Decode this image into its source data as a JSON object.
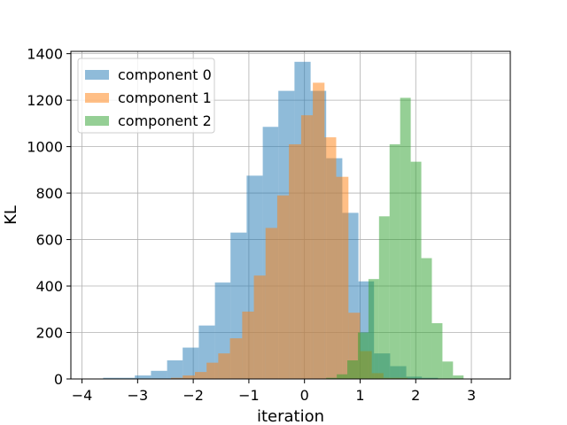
{
  "chart_data": {
    "type": "histogram",
    "title": "",
    "xlabel": "iteration",
    "ylabel": "KL",
    "xlim": [
      -4.2,
      3.7
    ],
    "ylim": [
      0,
      1410
    ],
    "xticks": [
      -4,
      -3,
      -2,
      -1,
      0,
      1,
      2,
      3
    ],
    "yticks": [
      0,
      200,
      400,
      600,
      800,
      1000,
      1200,
      1400
    ],
    "xtick_labels": [
      "−4",
      "−3",
      "−2",
      "−1",
      "0",
      "1",
      "2",
      "3"
    ],
    "ytick_labels": [
      "0",
      "200",
      "400",
      "600",
      "800",
      "1000",
      "1200",
      "1400"
    ],
    "grid": true,
    "legend_position": "upper left",
    "opacity": 0.5,
    "series": [
      {
        "name": "component 0",
        "color": "#1f77b4",
        "bin_edges": [
          -3.62,
          -3.33,
          -3.05,
          -2.76,
          -2.47,
          -2.19,
          -1.9,
          -1.61,
          -1.33,
          -1.04,
          -0.75,
          -0.47,
          -0.18,
          0.11,
          0.39,
          0.68,
          0.97,
          1.25,
          1.54,
          1.83,
          2.11,
          2.4
        ],
        "counts": [
          5,
          5,
          15,
          35,
          80,
          135,
          230,
          415,
          630,
          875,
          1085,
          1240,
          1365,
          1240,
          950,
          715,
          420,
          110,
          55,
          10,
          5
        ]
      },
      {
        "name": "component 1",
        "color": "#ff7f0e",
        "bin_edges": [
          -2.4,
          -2.19,
          -1.97,
          -1.76,
          -1.55,
          -1.34,
          -1.12,
          -0.91,
          -0.7,
          -0.49,
          -0.28,
          -0.06,
          0.15,
          0.36,
          0.57,
          0.79,
          1.0,
          1.21,
          1.42,
          1.64,
          1.85
        ],
        "counts": [
          5,
          15,
          30,
          70,
          110,
          175,
          290,
          445,
          650,
          790,
          1010,
          1135,
          1275,
          1040,
          870,
          285,
          120,
          25,
          5,
          5
        ]
      },
      {
        "name": "component 2",
        "color": "#2ca02c",
        "bin_edges": [
          0.39,
          0.58,
          0.77,
          0.96,
          1.15,
          1.34,
          1.53,
          1.72,
          1.91,
          2.1,
          2.29,
          2.48,
          2.67,
          2.86
        ],
        "counts": [
          5,
          20,
          80,
          200,
          430,
          700,
          1010,
          1210,
          935,
          520,
          240,
          75,
          15
        ]
      }
    ]
  }
}
